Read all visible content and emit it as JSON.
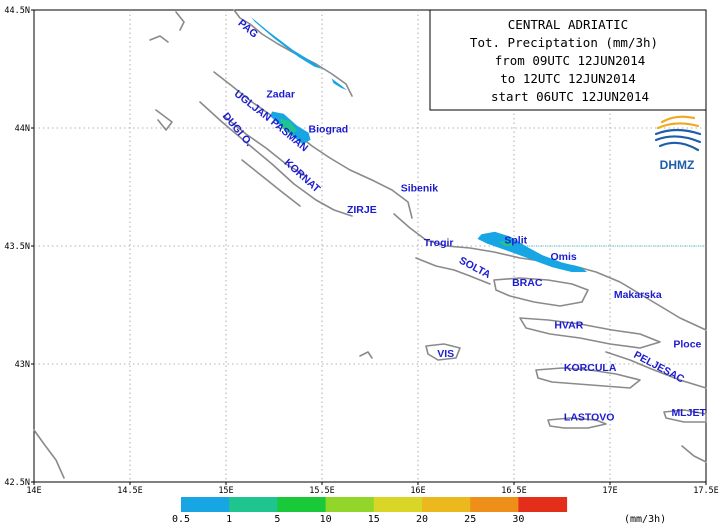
{
  "title_box": {
    "lines": [
      "CENTRAL ADRIATIC",
      "Tot. Preciptation (mm/3h)",
      "from 09UTC 12JUN2014",
      "to 12UTC 12JUN2014",
      "start 06UTC 12JUN2014"
    ]
  },
  "logo": {
    "text": "DHMZ",
    "colors": [
      "#f2a81d",
      "#1d5ea8"
    ]
  },
  "axes": {
    "lat_ticks": [
      {
        "value": 44.5,
        "label": "44.5N"
      },
      {
        "value": 44.0,
        "label": "44N"
      },
      {
        "value": 43.5,
        "label": "43.5N"
      },
      {
        "value": 43.0,
        "label": "43N"
      },
      {
        "value": 42.5,
        "label": "42.5N"
      }
    ],
    "lon_ticks": [
      {
        "value": 14.0,
        "label": "14E"
      },
      {
        "value": 14.5,
        "label": "14.5E"
      },
      {
        "value": 15.0,
        "label": "15E"
      },
      {
        "value": 15.5,
        "label": "15.5E"
      },
      {
        "value": 16.0,
        "label": "16E"
      },
      {
        "value": 16.5,
        "label": "16.5E"
      },
      {
        "value": 17.0,
        "label": "17E"
      },
      {
        "value": 17.5,
        "label": "17.5E"
      }
    ],
    "lon_range": [
      14.0,
      17.5
    ],
    "lat_range": [
      42.5,
      44.5
    ],
    "grid": "dotted"
  },
  "places": [
    {
      "name": "PAG",
      "lon": 15.06,
      "lat": 44.44,
      "rotate": 40
    },
    {
      "name": "Zadar",
      "lon": 15.21,
      "lat": 44.13,
      "rotate": 0
    },
    {
      "name": "UGLJAN",
      "lon": 15.04,
      "lat": 44.14,
      "rotate": 38
    },
    {
      "name": "PASMAN",
      "lon": 15.23,
      "lat": 44.02,
      "rotate": 40
    },
    {
      "name": "DUGI O.",
      "lon": 14.98,
      "lat": 44.05,
      "rotate": 50
    },
    {
      "name": "Biograd",
      "lon": 15.43,
      "lat": 43.98,
      "rotate": 0
    },
    {
      "name": "KORNAT",
      "lon": 15.3,
      "lat": 43.85,
      "rotate": 42
    },
    {
      "name": "Sibenik",
      "lon": 15.91,
      "lat": 43.73,
      "rotate": 0
    },
    {
      "name": "ZIRJE",
      "lon": 15.63,
      "lat": 43.64,
      "rotate": 0
    },
    {
      "name": "Trogir",
      "lon": 16.03,
      "lat": 43.5,
      "rotate": 0
    },
    {
      "name": "Split",
      "lon": 16.45,
      "lat": 43.51,
      "rotate": 0
    },
    {
      "name": "Omis",
      "lon": 16.69,
      "lat": 43.44,
      "rotate": 0
    },
    {
      "name": "SOLTA",
      "lon": 16.21,
      "lat": 43.43,
      "rotate": 28
    },
    {
      "name": "BRAC",
      "lon": 16.49,
      "lat": 43.33,
      "rotate": 0
    },
    {
      "name": "Makarska",
      "lon": 17.02,
      "lat": 43.28,
      "rotate": 0
    },
    {
      "name": "HVAR",
      "lon": 16.71,
      "lat": 43.15,
      "rotate": 0
    },
    {
      "name": "Ploce",
      "lon": 17.33,
      "lat": 43.07,
      "rotate": 0
    },
    {
      "name": "VIS",
      "lon": 16.1,
      "lat": 43.03,
      "rotate": 0
    },
    {
      "name": "PELJESAC",
      "lon": 17.12,
      "lat": 43.03,
      "rotate": 28
    },
    {
      "name": "KORCULA",
      "lon": 16.76,
      "lat": 42.97,
      "rotate": 0
    },
    {
      "name": "LASTOVO",
      "lon": 16.76,
      "lat": 42.76,
      "rotate": 0
    },
    {
      "name": "MLJET",
      "lon": 17.32,
      "lat": 42.78,
      "rotate": 0
    }
  ],
  "precip_areas": [
    {
      "level": "0.5-1",
      "color": "#17a5e4",
      "points": [
        [
          15.07,
          44.53
        ],
        [
          15.13,
          44.47
        ],
        [
          15.22,
          44.41
        ],
        [
          15.35,
          44.33
        ],
        [
          15.45,
          44.28
        ],
        [
          15.5,
          44.25
        ],
        [
          15.46,
          44.26
        ],
        [
          15.38,
          44.3
        ],
        [
          15.25,
          44.38
        ],
        [
          15.15,
          44.45
        ],
        [
          15.09,
          44.51
        ]
      ]
    },
    {
      "level": "0.5-1",
      "color": "#17a5e4",
      "points": [
        [
          15.55,
          44.21
        ],
        [
          15.6,
          44.18
        ],
        [
          15.63,
          44.16
        ],
        [
          15.6,
          44.17
        ],
        [
          15.56,
          44.19
        ]
      ]
    },
    {
      "level": "0.5-1",
      "color": "#17a5e4",
      "points": [
        [
          15.24,
          44.07
        ],
        [
          15.3,
          44.06
        ],
        [
          15.37,
          44.01
        ],
        [
          15.43,
          43.98
        ],
        [
          15.44,
          43.95
        ],
        [
          15.4,
          43.93
        ],
        [
          15.34,
          43.97
        ],
        [
          15.27,
          44.02
        ],
        [
          15.23,
          44.05
        ]
      ]
    },
    {
      "level": "1-5",
      "color": "#20c48f",
      "points": [
        [
          15.28,
          44.04
        ],
        [
          15.33,
          44.03
        ],
        [
          15.37,
          43.99
        ],
        [
          15.34,
          43.97
        ],
        [
          15.29,
          44.0
        ]
      ]
    },
    {
      "level": "0.5-1",
      "color": "#17a5e4",
      "points": [
        [
          16.33,
          43.55
        ],
        [
          16.4,
          43.56
        ],
        [
          16.48,
          43.54
        ],
        [
          16.56,
          43.5
        ],
        [
          16.65,
          43.46
        ],
        [
          16.75,
          43.43
        ],
        [
          16.85,
          43.41
        ],
        [
          16.88,
          43.39
        ],
        [
          16.8,
          43.39
        ],
        [
          16.7,
          43.41
        ],
        [
          16.6,
          43.44
        ],
        [
          16.5,
          43.47
        ],
        [
          16.43,
          43.49
        ],
        [
          16.36,
          43.51
        ],
        [
          16.31,
          43.53
        ]
      ]
    },
    {
      "level": "1-5",
      "color": "#20c48f",
      "points": [
        [
          16.42,
          43.52
        ],
        [
          16.48,
          43.52
        ],
        [
          16.5,
          43.5
        ],
        [
          16.45,
          43.5
        ]
      ]
    }
  ],
  "legend": {
    "bins": [
      {
        "label": "0.5",
        "color": "#17a5e4"
      },
      {
        "label": "1",
        "color": "#20c48f"
      },
      {
        "label": "5",
        "color": "#19c93a"
      },
      {
        "label": "10",
        "color": "#93d62b"
      },
      {
        "label": "15",
        "color": "#d9d628"
      },
      {
        "label": "20",
        "color": "#ebb81e"
      },
      {
        "label": "25",
        "color": "#ee8f19"
      },
      {
        "label": "30",
        "color": "#e32f19"
      }
    ],
    "unit": "(mm/3h)"
  }
}
